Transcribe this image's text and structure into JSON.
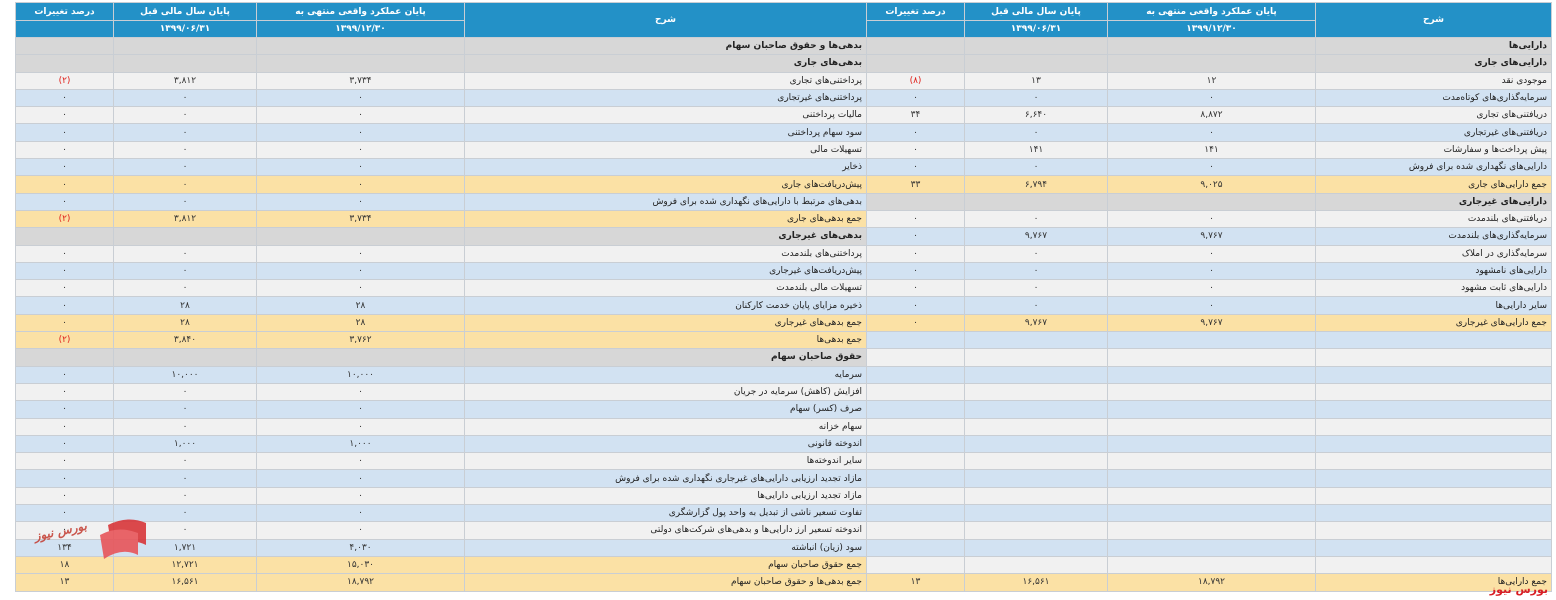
{
  "headers": {
    "right": {
      "desc": "شرح",
      "current": "پایان عملکرد واقعی منتهی به",
      "previous": "پایان سال مالی قبل",
      "pct": "درصد تغییرات"
    },
    "left": {
      "desc": "شرح",
      "current": "پایان عملکرد واقعی منتهی به",
      "previous": "پایان سال مالی قبل",
      "pct": "درصد تغییرات"
    },
    "dates": {
      "current": "۱۳۹۹/۱۲/۳۰",
      "previous": "۱۳۹۹/۰۶/۳۱"
    }
  },
  "rows": [
    {
      "style": "s",
      "a": {
        "label": "دارایی‌ها",
        "cur": "",
        "prev": "",
        "pct": "",
        "head": true
      },
      "l": {
        "label": "بدهی‌ها و حقوق صاحبان سهام",
        "cur": "",
        "prev": "",
        "pct": "",
        "head": true
      }
    },
    {
      "style": "s",
      "a": {
        "label": "دارایی‌های جاری",
        "cur": "",
        "prev": "",
        "pct": "",
        "head": true
      },
      "l": {
        "label": "بدهی‌های جاری",
        "cur": "",
        "prev": "",
        "pct": "",
        "head": true
      }
    },
    {
      "style": "w",
      "a": {
        "label": "موجودی نقد",
        "cur": "۱۲",
        "prev": "۱۳",
        "pct": "(۸)"
      },
      "l": {
        "label": "پرداختنی‌های تجاری",
        "cur": "۳,۷۳۴",
        "prev": "۳,۸۱۲",
        "pct": "(۲)"
      }
    },
    {
      "style": "b",
      "a": {
        "label": "سرمایه‌گذاری‌های کوتاه‌مدت",
        "cur": "۰",
        "prev": "۰",
        "pct": "۰"
      },
      "l": {
        "label": "پرداختنی‌های غیرتجاری",
        "cur": "۰",
        "prev": "۰",
        "pct": "۰"
      }
    },
    {
      "style": "w",
      "a": {
        "label": "دریافتنی‌های تجاری",
        "cur": "۸,۸۷۲",
        "prev": "۶,۶۴۰",
        "pct": "۳۴"
      },
      "l": {
        "label": "مالیات پرداختنی",
        "cur": "۰",
        "prev": "۰",
        "pct": "۰"
      }
    },
    {
      "style": "b",
      "a": {
        "label": "دریافتنی‌های غیرتجاری",
        "cur": "۰",
        "prev": "۰",
        "pct": "۰"
      },
      "l": {
        "label": "سود سهام پرداختنی",
        "cur": "۰",
        "prev": "۰",
        "pct": "۰"
      }
    },
    {
      "style": "w",
      "a": {
        "label": "پیش پرداخت‌ها و سفارشات",
        "cur": "۱۴۱",
        "prev": "۱۴۱",
        "pct": "۰"
      },
      "l": {
        "label": "تسهیلات مالی",
        "cur": "۰",
        "prev": "۰",
        "pct": "۰"
      }
    },
    {
      "style": "b",
      "a": {
        "label": "دارایی‌های نگهداری شده برای فروش",
        "cur": "۰",
        "prev": "۰",
        "pct": "۰"
      },
      "l": {
        "label": "ذخایر",
        "cur": "۰",
        "prev": "۰",
        "pct": "۰"
      }
    },
    {
      "style": "t",
      "a": {
        "label": "جمع دارایی‌های جاری",
        "cur": "۹,۰۲۵",
        "prev": "۶,۷۹۴",
        "pct": "۳۳"
      },
      "l": {
        "label": "پیش‌دریافت‌های جاری",
        "cur": "۰",
        "prev": "۰",
        "pct": "۰"
      }
    },
    {
      "style": "s",
      "a": {
        "label": "دارایی‌های غیرجاری",
        "cur": "",
        "prev": "",
        "pct": "",
        "head": true
      },
      "l": {
        "label": "بدهی‌های مرتبط با دارایی‌های نگهداری شده برای فروش",
        "cur": "۰",
        "prev": "۰",
        "pct": "۰"
      },
      "lstyle": "b"
    },
    {
      "style": "w",
      "a": {
        "label": "دریافتنی‌های بلندمدت",
        "cur": "۰",
        "prev": "۰",
        "pct": "۰"
      },
      "l": {
        "label": "جمع بدهی‌های جاری",
        "cur": "۳,۷۳۴",
        "prev": "۳,۸۱۲",
        "pct": "(۲)"
      },
      "lstyle": "t"
    },
    {
      "style": "b",
      "a": {
        "label": "سرمایه‌گذاری‌های بلندمدت",
        "cur": "۹,۷۶۷",
        "prev": "۹,۷۶۷",
        "pct": "۰"
      },
      "l": {
        "label": "بدهی‌های غیرجاری",
        "cur": "",
        "prev": "",
        "pct": "",
        "head": true
      },
      "lstyle": "s"
    },
    {
      "style": "w",
      "a": {
        "label": "سرمایه‌گذاری در املاک",
        "cur": "۰",
        "prev": "۰",
        "pct": "۰"
      },
      "l": {
        "label": "پرداختنی‌های بلندمدت",
        "cur": "۰",
        "prev": "۰",
        "pct": "۰"
      }
    },
    {
      "style": "b",
      "a": {
        "label": "دارایی‌های نامشهود",
        "cur": "۰",
        "prev": "۰",
        "pct": "۰"
      },
      "l": {
        "label": "پیش‌دریافت‌های غیرجاری",
        "cur": "۰",
        "prev": "۰",
        "pct": "۰"
      }
    },
    {
      "style": "w",
      "a": {
        "label": "دارایی‌های ثابت مشهود",
        "cur": "۰",
        "prev": "۰",
        "pct": "۰"
      },
      "l": {
        "label": "تسهیلات مالی بلندمدت",
        "cur": "۰",
        "prev": "۰",
        "pct": "۰"
      }
    },
    {
      "style": "b",
      "a": {
        "label": "سایر دارایی‌ها",
        "cur": "۰",
        "prev": "۰",
        "pct": "۰"
      },
      "l": {
        "label": "ذخیره مزایای پایان خدمت کارکنان",
        "cur": "۲۸",
        "prev": "۲۸",
        "pct": "۰"
      }
    },
    {
      "style": "t",
      "a": {
        "label": "جمع دارایی‌های غیرجاری",
        "cur": "۹,۷۶۷",
        "prev": "۹,۷۶۷",
        "pct": "۰"
      },
      "l": {
        "label": "جمع بدهی‌های غیرجاری",
        "cur": "۲۸",
        "prev": "۲۸",
        "pct": "۰"
      }
    },
    {
      "style": "b",
      "a": {
        "label": "",
        "cur": "",
        "prev": "",
        "pct": ""
      },
      "l": {
        "label": "جمع بدهی‌ها",
        "cur": "۳,۷۶۲",
        "prev": "۳,۸۴۰",
        "pct": "(۲)"
      },
      "lstyle": "t"
    },
    {
      "style": "w",
      "a": {
        "label": "",
        "cur": "",
        "prev": "",
        "pct": ""
      },
      "l": {
        "label": "حقوق صاحبان سهام",
        "cur": "",
        "prev": "",
        "pct": "",
        "head": true
      },
      "lstyle": "s"
    },
    {
      "style": "b",
      "a": {
        "label": "",
        "cur": "",
        "prev": "",
        "pct": ""
      },
      "l": {
        "label": "سرمایه",
        "cur": "۱۰,۰۰۰",
        "prev": "۱۰,۰۰۰",
        "pct": "۰"
      }
    },
    {
      "style": "w",
      "a": {
        "label": "",
        "cur": "",
        "prev": "",
        "pct": ""
      },
      "l": {
        "label": "افزایش (کاهش) سرمایه در جریان",
        "cur": "۰",
        "prev": "۰",
        "pct": "۰"
      }
    },
    {
      "style": "b",
      "a": {
        "label": "",
        "cur": "",
        "prev": "",
        "pct": ""
      },
      "l": {
        "label": "صرف (کسر) سهام",
        "cur": "۰",
        "prev": "۰",
        "pct": "۰"
      }
    },
    {
      "style": "w",
      "a": {
        "label": "",
        "cur": "",
        "prev": "",
        "pct": ""
      },
      "l": {
        "label": "سهام خزانه",
        "cur": "۰",
        "prev": "۰",
        "pct": "۰"
      }
    },
    {
      "style": "b",
      "a": {
        "label": "",
        "cur": "",
        "prev": "",
        "pct": ""
      },
      "l": {
        "label": "اندوخته قانونی",
        "cur": "۱,۰۰۰",
        "prev": "۱,۰۰۰",
        "pct": "۰"
      }
    },
    {
      "style": "w",
      "a": {
        "label": "",
        "cur": "",
        "prev": "",
        "pct": ""
      },
      "l": {
        "label": "سایر اندوخته‌ها",
        "cur": "۰",
        "prev": "۰",
        "pct": "۰"
      }
    },
    {
      "style": "b",
      "a": {
        "label": "",
        "cur": "",
        "prev": "",
        "pct": ""
      },
      "l": {
        "label": "مازاد تجدید ارزیابی دارایی‌های غیرجاری نگهداری شده برای فروش",
        "cur": "۰",
        "prev": "۰",
        "pct": "۰"
      }
    },
    {
      "style": "w",
      "a": {
        "label": "",
        "cur": "",
        "prev": "",
        "pct": ""
      },
      "l": {
        "label": "مازاد تجدید ارزیابی دارایی‌ها",
        "cur": "۰",
        "prev": "۰",
        "pct": "۰"
      }
    },
    {
      "style": "b",
      "a": {
        "label": "",
        "cur": "",
        "prev": "",
        "pct": ""
      },
      "l": {
        "label": "تفاوت تسعیر ناشی از تبدیل به واحد پول گزارشگری",
        "cur": "۰",
        "prev": "۰",
        "pct": "۰"
      }
    },
    {
      "style": "w",
      "a": {
        "label": "",
        "cur": "",
        "prev": "",
        "pct": ""
      },
      "l": {
        "label": "اندوخته تسعیر ارز دارایی‌ها و بدهی‌های شرکت‌های دولتی",
        "cur": "۰",
        "prev": "۰",
        "pct": "۰"
      }
    },
    {
      "style": "b",
      "a": {
        "label": "",
        "cur": "",
        "prev": "",
        "pct": ""
      },
      "l": {
        "label": "سود (زیان) انباشته",
        "cur": "۴,۰۳۰",
        "prev": "۱,۷۲۱",
        "pct": "۱۳۴"
      }
    },
    {
      "style": "w",
      "a": {
        "label": "",
        "cur": "",
        "prev": "",
        "pct": ""
      },
      "l": {
        "label": "جمع حقوق صاحبان سهام",
        "cur": "۱۵,۰۳۰",
        "prev": "۱۲,۷۲۱",
        "pct": "۱۸"
      },
      "lstyle": "t"
    },
    {
      "style": "t",
      "a": {
        "label": "جمع دارایی‌ها",
        "cur": "۱۸,۷۹۲",
        "prev": "۱۶,۵۶۱",
        "pct": "۱۳"
      },
      "l": {
        "label": "جمع بدهی‌ها و حقوق صاحبان سهام",
        "cur": "۱۸,۷۹۲",
        "prev": "۱۶,۵۶۱",
        "pct": "۱۳"
      }
    }
  ],
  "watermark": {
    "text": "بورس نیوز"
  },
  "brand": {
    "text": "بورس نیوز"
  },
  "colors": {
    "header": "#2391c7",
    "total_row": "#fbe1a5",
    "section_row": "#d7d7d7",
    "alt_row": "#d2e2f2",
    "negative": "#e0221c"
  }
}
